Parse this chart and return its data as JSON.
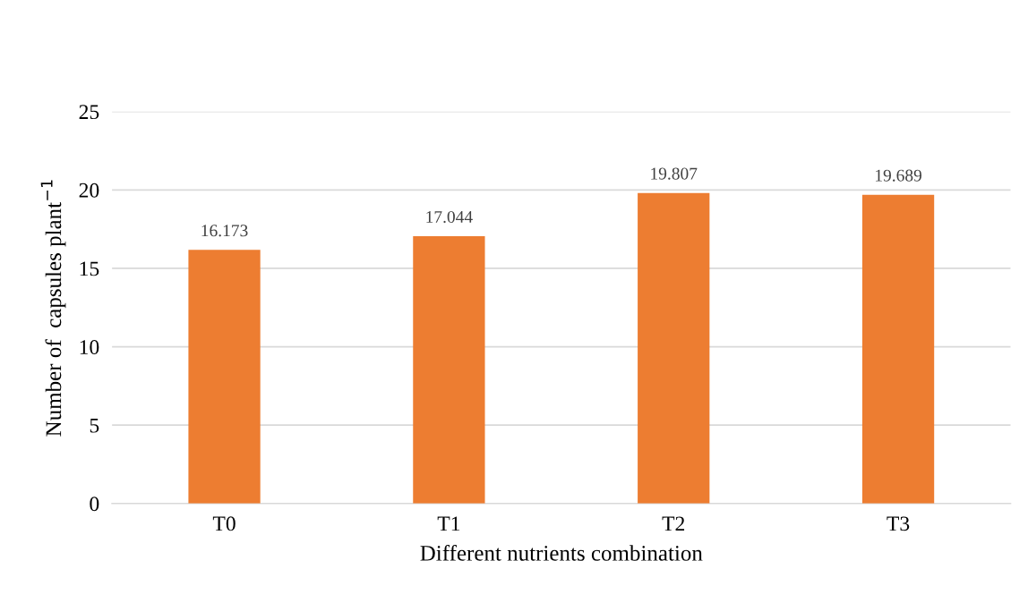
{
  "chart_data": {
    "type": "bar",
    "xlabel": "Different nutrients combination",
    "ylabel": "Number of  capsules plant$^{−1}$",
    "categories": [
      "T0",
      "T1",
      "T2",
      "T3"
    ],
    "values": [
      16.173,
      17.044,
      19.807,
      19.689
    ],
    "color": "#ed7d31",
    "ylim": [
      0,
      25
    ],
    "yticks": [
      0,
      5,
      10,
      15,
      20,
      25
    ],
    "grid": "y",
    "data_labels": true
  }
}
